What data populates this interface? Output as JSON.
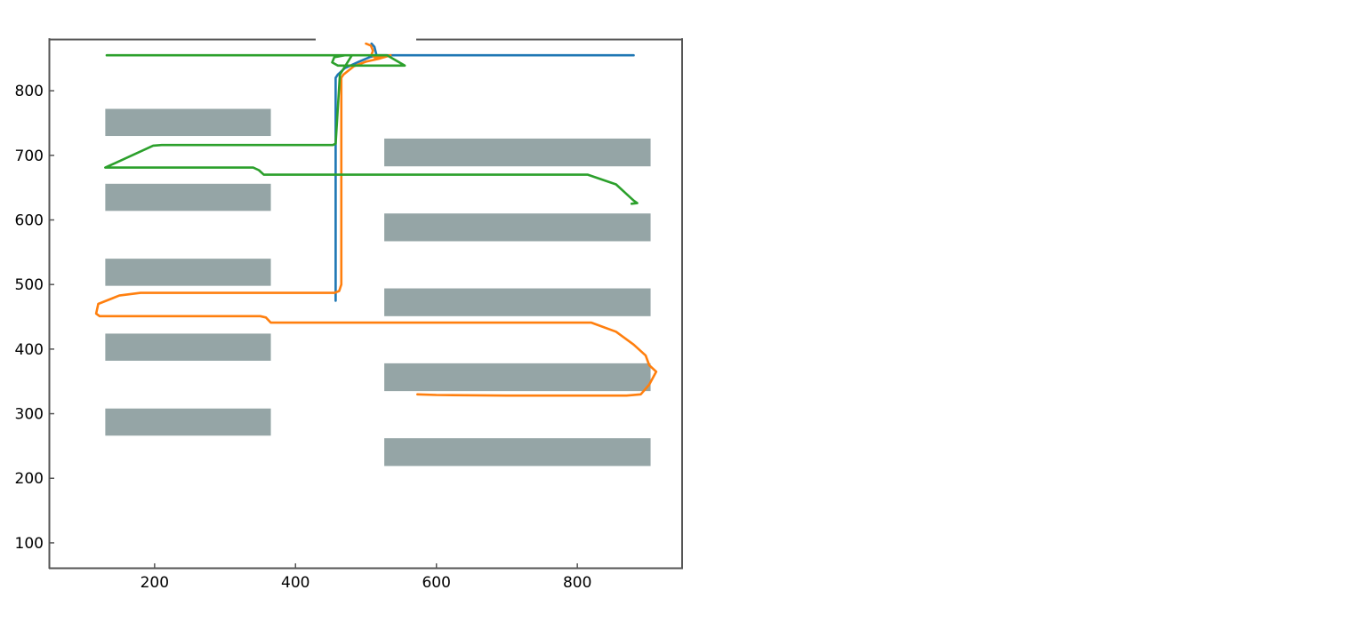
{
  "chart_data": {
    "type": "line",
    "title": "",
    "xlabel": "",
    "ylabel": "",
    "xlim": [
      50,
      950
    ],
    "ylim": [
      60,
      880
    ],
    "x_ticks": [
      200,
      400,
      600,
      800
    ],
    "y_ticks": [
      100,
      200,
      300,
      400,
      500,
      600,
      700,
      800
    ],
    "grid": false,
    "legend": "none",
    "colors": {
      "obstacle": "#95a5a6",
      "axis": "#555555",
      "series": [
        "#1f77b4",
        "#ff7f0e",
        "#2ca02c"
      ]
    },
    "obstacles": [
      {
        "x0": 130,
        "x1": 365,
        "y0": 730,
        "y1": 772
      },
      {
        "x0": 130,
        "x1": 365,
        "y0": 614,
        "y1": 656
      },
      {
        "x0": 130,
        "x1": 365,
        "y0": 498,
        "y1": 540
      },
      {
        "x0": 130,
        "x1": 365,
        "y0": 382,
        "y1": 424
      },
      {
        "x0": 130,
        "x1": 365,
        "y0": 266,
        "y1": 308
      },
      {
        "x0": 526,
        "x1": 904,
        "y0": 683,
        "y1": 726
      },
      {
        "x0": 526,
        "x1": 904,
        "y0": 567,
        "y1": 610
      },
      {
        "x0": 526,
        "x1": 904,
        "y0": 451,
        "y1": 494
      },
      {
        "x0": 526,
        "x1": 904,
        "y0": 335,
        "y1": 378
      },
      {
        "x0": 526,
        "x1": 904,
        "y0": 219,
        "y1": 262
      }
    ],
    "series": [
      {
        "x": [
          457,
          457,
          460,
          470,
          490,
          505,
          515,
          525,
          600,
          700,
          800,
          880,
          515,
          512,
          508
        ],
        "y": [
          475,
          820,
          825,
          835,
          845,
          852,
          855,
          855,
          855,
          855,
          855,
          855,
          855,
          868,
          873
        ]
      },
      {
        "x": [
          500,
          507,
          510,
          508,
          512,
          535,
          520,
          500,
          483,
          468,
          465,
          465,
          465,
          462,
          455,
          400,
          300,
          180,
          150,
          120,
          117,
          122,
          350,
          358,
          365,
          600,
          820,
          855,
          880,
          897,
          902,
          912,
          902,
          890,
          870,
          800,
          700,
          600,
          573
        ],
        "y": [
          873,
          870,
          862,
          856,
          852,
          855,
          850,
          845,
          838,
          825,
          820,
          800,
          500,
          490,
          487,
          487,
          487,
          487,
          483,
          470,
          455,
          451,
          451,
          449,
          441,
          441,
          441,
          427,
          407,
          390,
          375,
          365,
          345,
          330,
          328,
          328,
          328,
          329,
          330
        ]
      },
      {
        "x": [
          132,
          300,
          450,
          530,
          555,
          460,
          452,
          455,
          470,
          480,
          463,
          457,
          453,
          400,
          300,
          210,
          198,
          130,
          340,
          348,
          355,
          600,
          815,
          855,
          870,
          880,
          885,
          877
        ],
        "y": [
          855,
          855,
          855,
          855,
          839,
          839,
          844,
          852,
          855,
          855,
          825,
          718,
          716,
          716,
          716,
          716,
          715,
          681,
          681,
          677,
          670,
          670,
          670,
          655,
          640,
          630,
          626,
          625
        ]
      }
    ]
  }
}
